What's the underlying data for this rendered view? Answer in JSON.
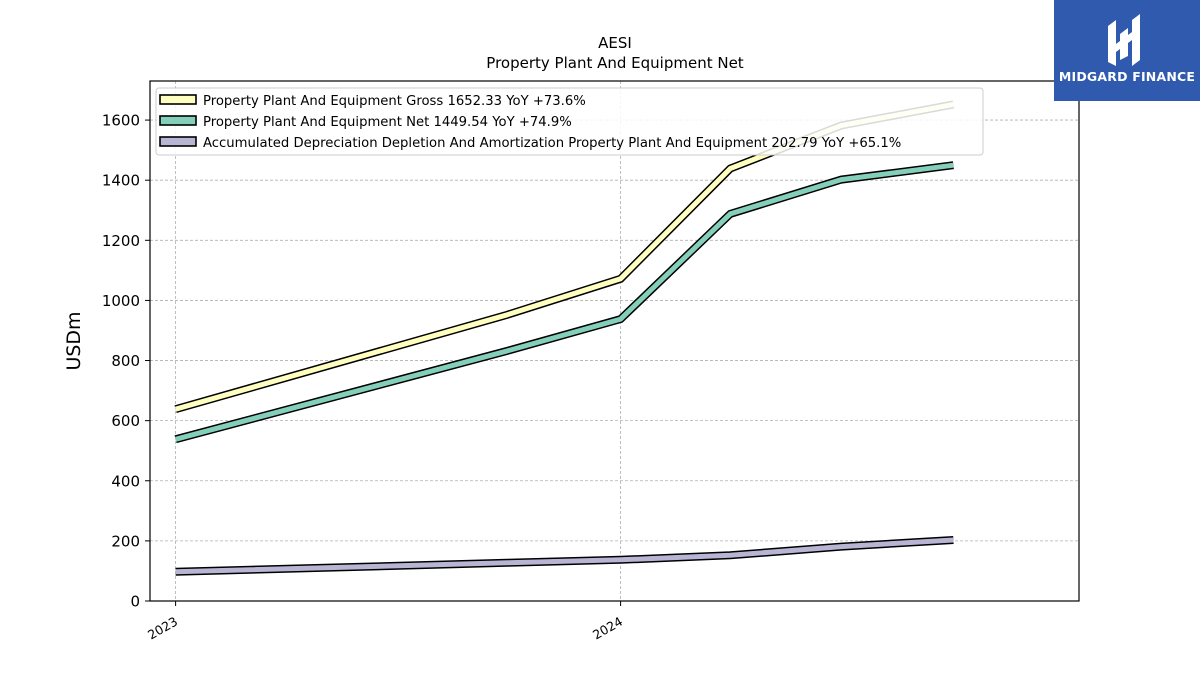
{
  "chart_data": {
    "type": "line",
    "title": "AESI",
    "subtitle": "Property Plant And Equipment Net",
    "xlabel": "",
    "ylabel": "USDm",
    "ylim": [
      0,
      1730
    ],
    "yticks": [
      0,
      200,
      400,
      600,
      800,
      1000,
      1200,
      1400,
      1600
    ],
    "xrange": [
      "2022-12-11",
      "2025-01-11"
    ],
    "xticks": [
      {
        "label": "2023",
        "date": "2023-01-01"
      },
      {
        "label": "2024",
        "date": "2024-01-01"
      }
    ],
    "x": [
      "2023-01-01",
      "2023-09-30",
      "2024-01-01",
      "2024-03-31",
      "2024-06-30",
      "2024-09-30"
    ],
    "series": [
      {
        "name": "Property Plant And Equipment Gross",
        "legend": "Property Plant And Equipment Gross  1652.33 YoY +73.6%",
        "color": "#ffffbf",
        "values": [
          638,
          952,
          1072,
          1439,
          1582,
          1652
        ]
      },
      {
        "name": "Property Plant And Equipment Net",
        "legend": "Property Plant And Equipment Net  1449.54 YoY +74.9%",
        "color": "#84cfb9",
        "values": [
          538,
          832,
          938,
          1288,
          1402,
          1450
        ]
      },
      {
        "name": "Accumulated Depreciation Depletion And Amortization Property Plant And Equipment",
        "legend": "Accumulated Depreciation Depletion And Amortization Property Plant And Equipment  202.79 YoY +65.1%",
        "color": "#b8b5d4",
        "values": [
          97,
          127,
          137,
          152,
          181,
          203
        ]
      }
    ],
    "grid": true,
    "legend_position": "top-left"
  },
  "logo": {
    "text": "MIDGARD FINANCE",
    "bg": "#2f5aad"
  }
}
